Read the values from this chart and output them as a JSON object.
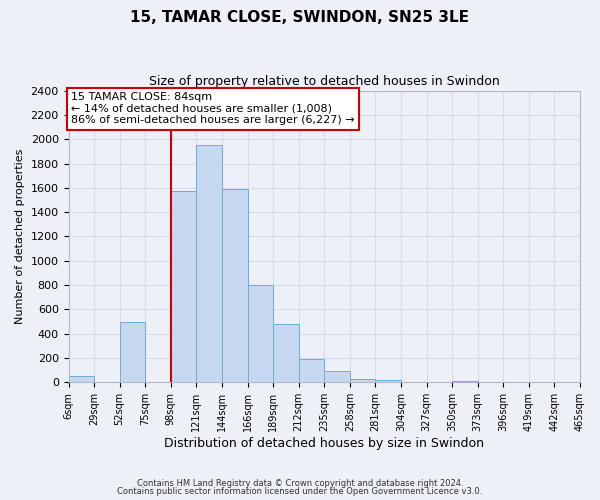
{
  "title": "15, TAMAR CLOSE, SWINDON, SN25 3LE",
  "subtitle": "Size of property relative to detached houses in Swindon",
  "xlabel": "Distribution of detached houses by size in Swindon",
  "ylabel": "Number of detached properties",
  "footer_line1": "Contains HM Land Registry data © Crown copyright and database right 2024.",
  "footer_line2": "Contains public sector information licensed under the Open Government Licence v3.0.",
  "bin_labels": [
    "6sqm",
    "29sqm",
    "52sqm",
    "75sqm",
    "98sqm",
    "121sqm",
    "144sqm",
    "166sqm",
    "189sqm",
    "212sqm",
    "235sqm",
    "258sqm",
    "281sqm",
    "304sqm",
    "327sqm",
    "350sqm",
    "373sqm",
    "396sqm",
    "419sqm",
    "442sqm",
    "465sqm"
  ],
  "bin_values": [
    55,
    0,
    500,
    0,
    1575,
    1950,
    1590,
    800,
    480,
    190,
    95,
    30,
    20,
    0,
    0,
    15,
    0,
    0,
    0,
    0
  ],
  "bar_color": "#c5d8f0",
  "bar_edge_color": "#6aaed6",
  "ylim": [
    0,
    2400
  ],
  "yticks": [
    0,
    200,
    400,
    600,
    800,
    1000,
    1200,
    1400,
    1600,
    1800,
    2000,
    2200,
    2400
  ],
  "property_label": "15 TAMAR CLOSE: 84sqm",
  "annotation_line1": "← 14% of detached houses are smaller (1,008)",
  "annotation_line2": "86% of semi-detached houses are larger (6,227) →",
  "vline_bin_index": 4,
  "vline_color": "#cc0000",
  "grid_color": "#d8dce8",
  "background_color": "#eef0f8",
  "plot_bg_color": "#eef0f8"
}
